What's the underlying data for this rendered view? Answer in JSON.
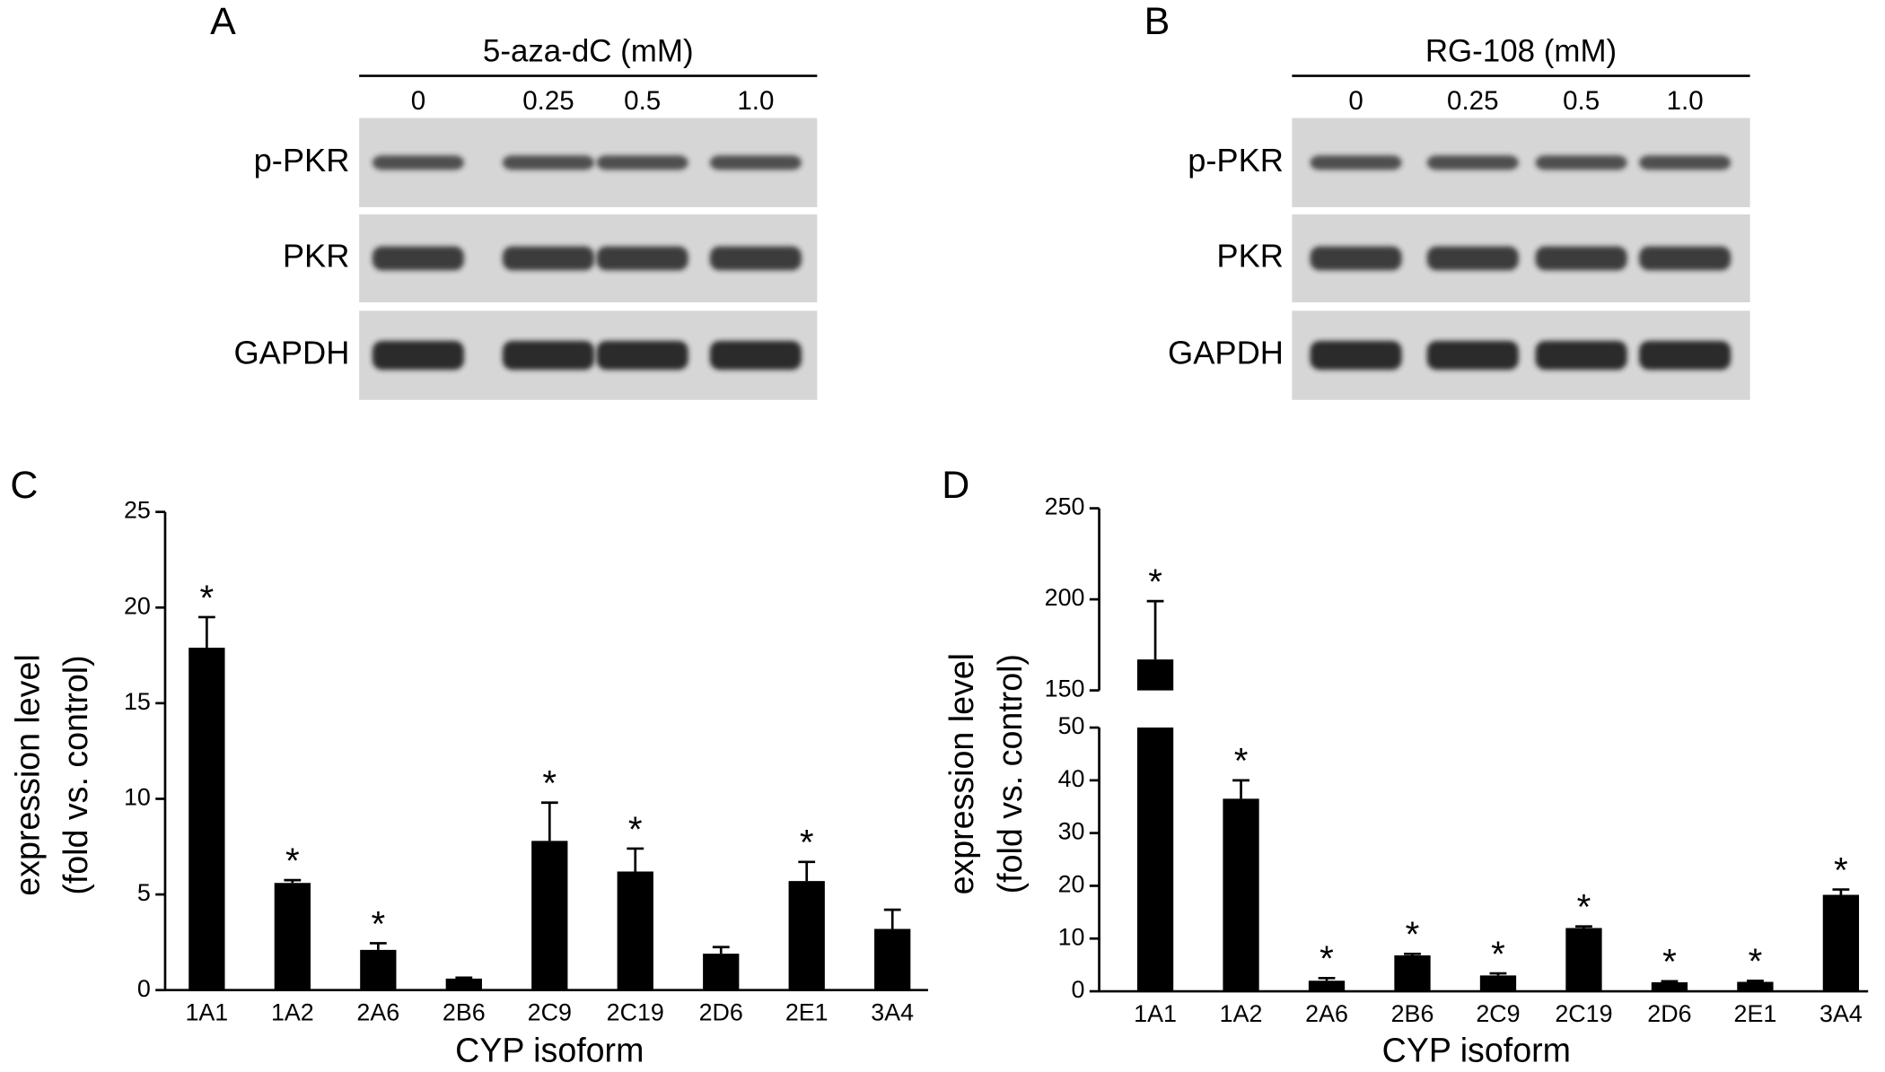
{
  "panels": [
    {
      "label": "A",
      "treatment": "5-aza-dC (mM)",
      "doses": [
        "0",
        "0.25",
        "0.5",
        "1.0"
      ],
      "rows": [
        "p-PKR",
        "PKR",
        "GAPDH"
      ]
    },
    {
      "label": "B",
      "treatment": "RG-108 (mM)",
      "doses": [
        "0",
        "0.25",
        "0.5",
        "1.0"
      ],
      "rows": [
        "p-PKR",
        "PKR",
        "GAPDH"
      ]
    }
  ],
  "chart_data": [
    {
      "type": "bar",
      "panel_label": "C",
      "categories": [
        "1A1",
        "1A2",
        "2A6",
        "2B6",
        "2C9",
        "2C19",
        "2D6",
        "2E1",
        "3A4"
      ],
      "values": [
        17.9,
        5.6,
        2.1,
        0.6,
        7.8,
        6.2,
        1.9,
        5.7,
        3.2
      ],
      "errors": [
        1.6,
        0.15,
        0.35,
        0.05,
        2.0,
        1.2,
        0.35,
        1.0,
        1.0
      ],
      "annotations": [
        "*",
        "*",
        "*",
        null,
        "*",
        "*",
        null,
        "*",
        null
      ],
      "color": "#000000",
      "ylim": [
        0,
        25
      ],
      "yticks": [
        0,
        5,
        10,
        15,
        20,
        25
      ],
      "x_label": "CYP isoform",
      "y_label": [
        "expression level",
        "(fold vs. control)"
      ]
    },
    {
      "type": "bar",
      "panel_label": "D",
      "categories": [
        "1A1",
        "1A2",
        "2A6",
        "2B6",
        "2C9",
        "2C19",
        "2D6",
        "2E1",
        "3A4"
      ],
      "values": [
        167,
        36.5,
        2,
        6.8,
        3,
        12,
        1.7,
        1.8,
        18.3
      ],
      "errors": [
        32,
        3.5,
        0.5,
        0.3,
        0.4,
        0.3,
        0.2,
        0.2,
        1
      ],
      "annotations": [
        "*",
        "*",
        "*",
        "*",
        "*",
        "*",
        "*",
        "*",
        "*"
      ],
      "color": "#000000",
      "ylim": [
        0,
        250
      ],
      "axis_break": [
        50,
        150
      ],
      "yticks": [
        0,
        10,
        20,
        30,
        40,
        50,
        150,
        200,
        250
      ],
      "x_label": "CYP isoform",
      "y_label": [
        "expression level",
        "(fold vs. control)"
      ]
    }
  ]
}
